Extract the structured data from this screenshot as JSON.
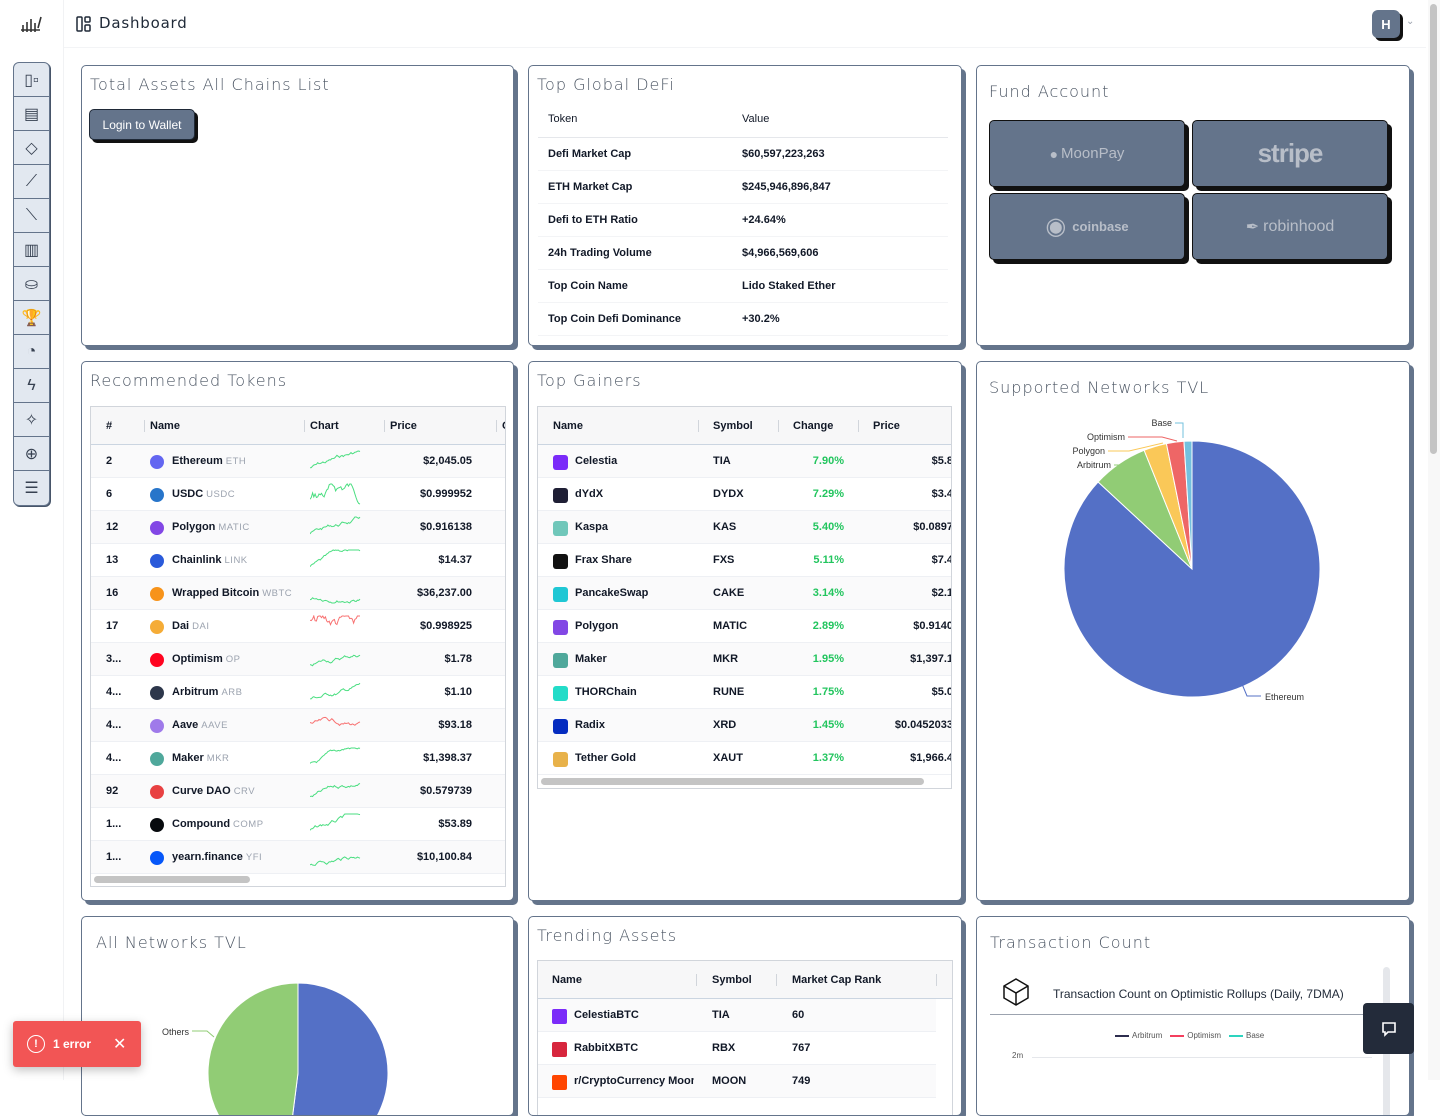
{
  "header": {
    "title": "Dashboard",
    "avatar_initial": "H"
  },
  "sidebar": {
    "items": [
      {
        "icon": "dashboard-icon",
        "glyph": "▯▫"
      },
      {
        "icon": "newspaper-icon",
        "glyph": "▤"
      },
      {
        "icon": "ethereum-icon",
        "glyph": "◇"
      },
      {
        "icon": "chart-up-icon",
        "glyph": "⟋"
      },
      {
        "icon": "chart-down-icon",
        "glyph": "⟍"
      },
      {
        "icon": "bar-chart-icon",
        "glyph": "▥"
      },
      {
        "icon": "coin-icon",
        "glyph": "⛀"
      },
      {
        "icon": "trophy-icon",
        "glyph": "🏆"
      },
      {
        "icon": "pie-chart-icon",
        "glyph": "◔"
      },
      {
        "icon": "lightning-icon",
        "glyph": "ϟ"
      },
      {
        "icon": "sparkle-icon",
        "glyph": "✧"
      },
      {
        "icon": "globe-icon",
        "glyph": "⊕"
      },
      {
        "icon": "sliders-icon",
        "glyph": "☰"
      }
    ]
  },
  "total_assets": {
    "title": "Total Assets All Chains List",
    "login_label": "Login to Wallet"
  },
  "global_defi": {
    "title": "Top Global DeFi",
    "headers": [
      "Token",
      "Value"
    ],
    "rows": [
      [
        "Defi Market Cap",
        "$60,597,223,263"
      ],
      [
        "ETH Market Cap",
        "$245,946,896,847"
      ],
      [
        "Defi to ETH Ratio",
        "+24.64%"
      ],
      [
        "24h Trading Volume",
        "$4,966,569,606"
      ],
      [
        "Top Coin Name",
        "Lido Staked Ether"
      ],
      [
        "Top Coin Defi Dominance",
        "+30.2%"
      ]
    ]
  },
  "fund": {
    "title": "Fund Account",
    "providers": [
      "MoonPay",
      "stripe",
      "coinbase",
      "robinhood"
    ]
  },
  "recommended": {
    "title": "Recommended Tokens",
    "headers": [
      "#",
      "Name",
      "Chart",
      "Price",
      "C"
    ],
    "rows": [
      {
        "rank": "2",
        "name": "Ethereum",
        "symbol": "ETH",
        "price": "$2,045.05",
        "trend": "up",
        "color": "#6366f1"
      },
      {
        "rank": "6",
        "name": "USDC",
        "symbol": "USDC",
        "price": "$0.999952",
        "trend": "up",
        "color": "#2775ca"
      },
      {
        "rank": "12",
        "name": "Polygon",
        "symbol": "MATIC",
        "price": "$0.916138",
        "trend": "up",
        "color": "#8247e5"
      },
      {
        "rank": "13",
        "name": "Chainlink",
        "symbol": "LINK",
        "price": "$14.37",
        "trend": "up",
        "color": "#2a5ada"
      },
      {
        "rank": "16",
        "name": "Wrapped Bitcoin",
        "symbol": "WBTC",
        "price": "$36,237.00",
        "trend": "up",
        "color": "#f7931a"
      },
      {
        "rank": "17",
        "name": "Dai",
        "symbol": "DAI",
        "price": "$0.998925",
        "trend": "down",
        "color": "#f5ac37"
      },
      {
        "rank": "3...",
        "name": "Optimism",
        "symbol": "OP",
        "price": "$1.78",
        "trend": "up",
        "color": "#ff0420"
      },
      {
        "rank": "4...",
        "name": "Arbitrum",
        "symbol": "ARB",
        "price": "$1.10",
        "trend": "up",
        "color": "#2d374b"
      },
      {
        "rank": "4...",
        "name": "Aave",
        "symbol": "AAVE",
        "price": "$93.18",
        "trend": "down",
        "color": "#9f7aea"
      },
      {
        "rank": "4...",
        "name": "Maker",
        "symbol": "MKR",
        "price": "$1,398.37",
        "trend": "up",
        "color": "#4fa89b"
      },
      {
        "rank": "92",
        "name": "Curve DAO",
        "symbol": "CRV",
        "price": "$0.579739",
        "trend": "up",
        "color": "#e84142"
      },
      {
        "rank": "1...",
        "name": "Compound",
        "symbol": "COMP",
        "price": "$53.89",
        "trend": "up",
        "color": "#070a0e"
      },
      {
        "rank": "1...",
        "name": "yearn.finance",
        "symbol": "YFI",
        "price": "$10,100.84",
        "trend": "up",
        "color": "#0657f9"
      }
    ]
  },
  "gainers": {
    "title": "Top Gainers",
    "headers": [
      "Name",
      "Symbol",
      "Change",
      "Price"
    ],
    "rows": [
      {
        "name": "Celestia",
        "symbol": "TIA",
        "change": "7.90%",
        "price": "$5.8",
        "color": "#7b2bf9"
      },
      {
        "name": "dYdX",
        "symbol": "DYDX",
        "change": "7.29%",
        "price": "$3.4",
        "color": "#1f1f35"
      },
      {
        "name": "Kaspa",
        "symbol": "KAS",
        "change": "5.40%",
        "price": "$0.0897",
        "color": "#70c7ba"
      },
      {
        "name": "Frax Share",
        "symbol": "FXS",
        "change": "5.11%",
        "price": "$7.4",
        "color": "#111111"
      },
      {
        "name": "PancakeSwap",
        "symbol": "CAKE",
        "change": "3.14%",
        "price": "$2.1",
        "color": "#1fc7d4"
      },
      {
        "name": "Polygon",
        "symbol": "MATIC",
        "change": "2.89%",
        "price": "$0.9140",
        "color": "#8247e5"
      },
      {
        "name": "Maker",
        "symbol": "MKR",
        "change": "1.95%",
        "price": "$1,397.1",
        "color": "#4fa89b"
      },
      {
        "name": "THORChain",
        "symbol": "RUNE",
        "change": "1.75%",
        "price": "$5.0",
        "color": "#23dcc8"
      },
      {
        "name": "Radix",
        "symbol": "XRD",
        "change": "1.45%",
        "price": "$0.0452033",
        "color": "#052cc0"
      },
      {
        "name": "Tether Gold",
        "symbol": "XAUT",
        "change": "1.37%",
        "price": "$1,966.4",
        "color": "#e8b24a"
      }
    ]
  },
  "supported_tvl": {
    "title": "Supported Networks TVL"
  },
  "all_tvl": {
    "title": "All Networks TVL"
  },
  "trending": {
    "title": "Trending Assets",
    "headers": [
      "Name",
      "Symbol",
      "Market Cap Rank"
    ],
    "rows": [
      {
        "name": "CelestiaBTC",
        "symbol": "TIA",
        "rank": "60",
        "color": "#7b2bf9"
      },
      {
        "name": "RabbitXBTC",
        "symbol": "RBX",
        "rank": "767",
        "color": "#d7263d"
      },
      {
        "name": "r/CryptoCurrency Moons",
        "symbol": "MOON",
        "rank": "749",
        "color": "#ff4500"
      }
    ]
  },
  "tx_count": {
    "title": "Transaction Count",
    "chart_title": "Transaction Count on Optimistic Rollups (Daily, 7DMA)"
  },
  "toast": {
    "label": "1 error"
  },
  "chart_data": [
    {
      "type": "pie",
      "title": "",
      "slices": [
        {
          "name": "Ethereum",
          "value": 86.9,
          "color": "#5470c6"
        },
        {
          "name": "Arbitrum",
          "value": 7.0,
          "color": "#91cc75"
        },
        {
          "name": "Polygon",
          "value": 2.9,
          "color": "#fac858"
        },
        {
          "name": "Optimism",
          "value": 2.2,
          "color": "#ee6666"
        },
        {
          "name": "Base",
          "value": 1.0,
          "color": "#73c0de"
        }
      ]
    },
    {
      "type": "pie",
      "title": "",
      "slices": [
        {
          "name": "",
          "value": 52,
          "color": "#5470c6"
        },
        {
          "name": "Others",
          "value": 48,
          "color": "#91cc75"
        }
      ]
    },
    {
      "type": "line",
      "title": "Transaction Count on Optimistic Rollups (Daily, 7DMA)",
      "legend": [
        {
          "name": "Arbitrum",
          "color": "#2d2d4e"
        },
        {
          "name": "Optimism",
          "color": "#f43f5e"
        },
        {
          "name": "Base",
          "color": "#2dd4bf"
        }
      ],
      "y_ticks": [
        "2m"
      ]
    }
  ]
}
